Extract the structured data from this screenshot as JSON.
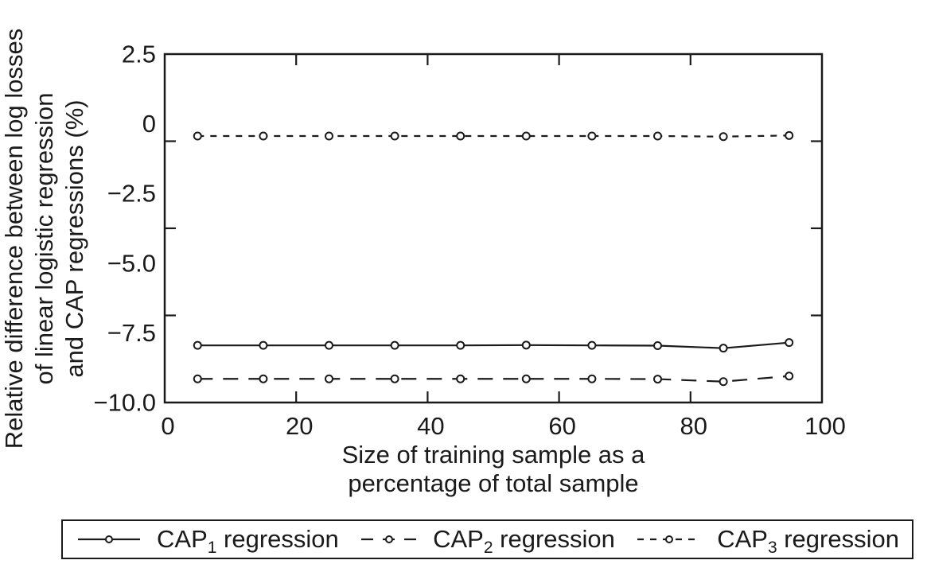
{
  "figure": {
    "background": "#ffffff",
    "ink_color": "#1a1a1a"
  },
  "chart_data": {
    "type": "line",
    "title": "",
    "xlabel_lines": [
      "Size of training sample as a",
      "percentage of total sample"
    ],
    "ylabel_lines": [
      "Relative difference between log losses",
      "of linear logistic regression",
      "and CAP regressions (%)"
    ],
    "xlim": [
      0,
      100
    ],
    "ylim": [
      -10.0,
      2.5
    ],
    "x_ticks": [
      0,
      20,
      40,
      60,
      80,
      100
    ],
    "x_tick_labels": [
      "0",
      "20",
      "40",
      "60",
      "80",
      "100"
    ],
    "y_ticks": [
      2.5,
      0,
      -2.5,
      -5.0,
      -7.5,
      -10.0
    ],
    "y_tick_labels": [
      "2.5",
      "0",
      "−2.5",
      "−5.0",
      "−7.5",
      "−10.0"
    ],
    "y_minor_ticks": [
      -0.625,
      -3.75,
      -6.875
    ],
    "grid": false,
    "frame": "box with inward ticks mirrored on all sides",
    "marker": "open-circle",
    "legend_position": "bottom",
    "x": [
      5,
      15,
      25,
      35,
      45,
      55,
      65,
      75,
      85,
      95
    ],
    "series": [
      {
        "id": "cap1",
        "name": "CAP1 regression",
        "label": {
          "prefix": "CAP",
          "sub": "1",
          "suffix": " regression"
        },
        "line_style": "solid",
        "values": [
          -7.95,
          -7.95,
          -7.95,
          -7.95,
          -7.95,
          -7.94,
          -7.95,
          -7.96,
          -8.05,
          -7.85
        ]
      },
      {
        "id": "cap2",
        "name": "CAP2 regression",
        "label": {
          "prefix": "CAP",
          "sub": "2",
          "suffix": " regression"
        },
        "line_style": "long-dash",
        "values": [
          -9.15,
          -9.15,
          -9.15,
          -9.15,
          -9.15,
          -9.15,
          -9.15,
          -9.16,
          -9.25,
          -9.05
        ]
      },
      {
        "id": "cap3",
        "name": "CAP3 regression",
        "label": {
          "prefix": "CAP",
          "sub": "3",
          "suffix": " regression"
        },
        "line_style": "short-dash",
        "values": [
          -0.44,
          -0.44,
          -0.44,
          -0.44,
          -0.44,
          -0.44,
          -0.44,
          -0.44,
          -0.46,
          -0.42
        ]
      }
    ]
  }
}
